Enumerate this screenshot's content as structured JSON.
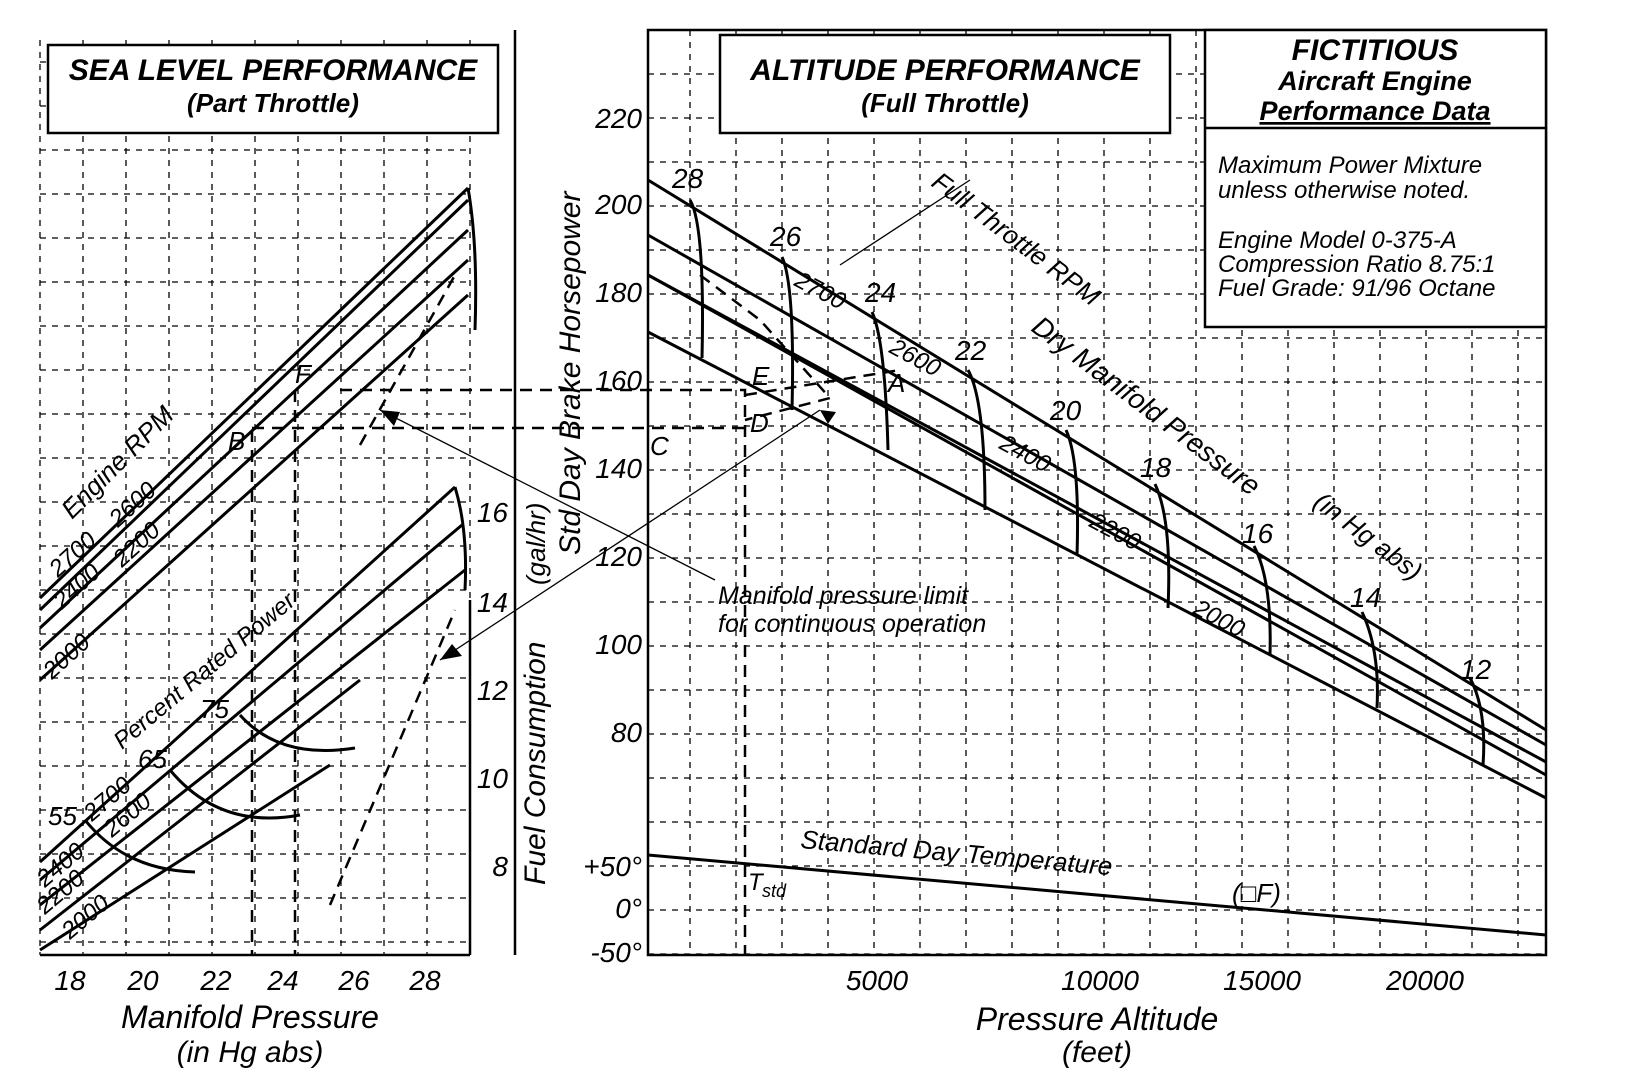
{
  "chart_data": [
    {
      "type": "line",
      "title": "SEA LEVEL PERFORMANCE",
      "subtitle": "(Part Throttle)",
      "xlabel": "Manifold Pressure",
      "xlabel_unit": "(in Hg abs)",
      "xlim": [
        17,
        29.5
      ],
      "x_ticks": [
        "18",
        "20",
        "22",
        "24",
        "26",
        "28"
      ],
      "upper_group_label": "Engine RPM",
      "upper_series": [
        {
          "name": "2700",
          "x": [
            17,
            29.2
          ],
          "y": [
            165,
            206
          ]
        },
        {
          "name": "2600",
          "x": [
            17,
            29.2
          ],
          "y": [
            162,
            202
          ]
        },
        {
          "name": "2400",
          "x": [
            17,
            29.2
          ],
          "y": [
            158,
            195
          ]
        },
        {
          "name": "2200",
          "x": [
            17,
            29.2
          ],
          "y": [
            152,
            187
          ]
        },
        {
          "name": "2000",
          "x": [
            17,
            29.2
          ],
          "y": [
            145,
            178
          ]
        }
      ],
      "upper_labels": [
        "2700",
        "2600",
        "2400",
        "2200",
        "2000"
      ],
      "right_axis_label": "Fuel Consumption",
      "right_axis_unit": "(gal/hr)",
      "right_ticks": [
        "16",
        "14",
        "12",
        "10",
        "8"
      ],
      "lower_group_label": "Percent Rated Power",
      "lower_series": [
        {
          "name": "2700",
          "x": [
            17,
            28.8
          ],
          "y": [
            7.8,
            16.7
          ]
        },
        {
          "name": "2600",
          "x": [
            17,
            28.8
          ],
          "y": [
            7.3,
            15.8
          ]
        },
        {
          "name": "2400",
          "x": [
            17,
            28.8
          ],
          "y": [
            6.6,
            14.6
          ]
        },
        {
          "name": "2200",
          "x": [
            17,
            28.8
          ],
          "y": [
            5.9,
            13.2
          ]
        },
        {
          "name": "2000",
          "x": [
            17,
            28.8
          ],
          "y": [
            5.3,
            11.9
          ]
        }
      ],
      "lower_labels": [
        "2700",
        "2600",
        "2400",
        "2200",
        "2000"
      ],
      "percent_labels": [
        "75",
        "65",
        "55"
      ],
      "point_labels": [
        "F",
        "B"
      ]
    },
    {
      "type": "line",
      "title": "ALTITUDE PERFORMANCE",
      "subtitle": "(Full Throttle)",
      "xlabel": "Pressure Altitude",
      "xlabel_unit": "(feet)",
      "ylabel": "Std Day Brake Horsepower",
      "x_ticks": [
        "5000",
        "10000",
        "15000",
        "20000"
      ],
      "y_ticks": [
        "220",
        "200",
        "180",
        "160",
        "140",
        "120",
        "100",
        "80"
      ],
      "temp_ticks": [
        "+50°",
        "0°",
        "-50°"
      ],
      "xlim": [
        0,
        25000
      ],
      "ylim": [
        60,
        230
      ],
      "series": [
        {
          "name": "2700",
          "x": [
            0,
            25000
          ],
          "y": [
            206,
            80
          ]
        },
        {
          "name": "2600",
          "x": [
            0,
            25000
          ],
          "y": [
            200,
            76
          ]
        },
        {
          "name": "2400",
          "x": [
            0,
            25000
          ],
          "y": [
            193,
            72
          ]
        },
        {
          "name": "2200",
          "x": [
            0,
            25000
          ],
          "y": [
            184,
            68
          ]
        },
        {
          "name": "2000",
          "x": [
            0,
            25000
          ],
          "y": [
            171,
            62
          ]
        }
      ],
      "rpm_labels": [
        "2700",
        "2600",
        "2400",
        "2200",
        "2000"
      ],
      "manifold_pressure_labels": [
        "28",
        "26",
        "24",
        "22",
        "20",
        "18",
        "16",
        "14",
        "12"
      ],
      "manifold_pressure_altitudes": [
        1300,
        3700,
        6200,
        9000,
        11900,
        14400,
        17400,
        20400,
        23200
      ],
      "full_throttle_label": "Full Throttle RPM",
      "dry_mp_label": "Dry Manifold Pressure",
      "dry_mp_unit": "(in Hg abs)",
      "point_labels": [
        "A",
        "C",
        "D",
        "E"
      ],
      "temperature": {
        "label": "Standard Day Temperature",
        "unit": "(□F)",
        "tstd_label": "T",
        "tstd_sub": "std",
        "x": [
          0,
          25000
        ],
        "y": [
          59,
          -30
        ]
      }
    }
  ],
  "info_box": {
    "title1": "FICTITIOUS",
    "title2": "Aircraft Engine",
    "title3": "Performance Data",
    "note1": "Maximum Power Mixture",
    "note2": "unless otherwise noted.",
    "model": "Engine Model 0-375-A",
    "compression": "Compression Ratio 8.75:1",
    "fuel": "Fuel Grade:   91/96 Octane"
  },
  "annotation": {
    "line1": "Manifold pressure limit",
    "line2": "for continuous operation"
  }
}
